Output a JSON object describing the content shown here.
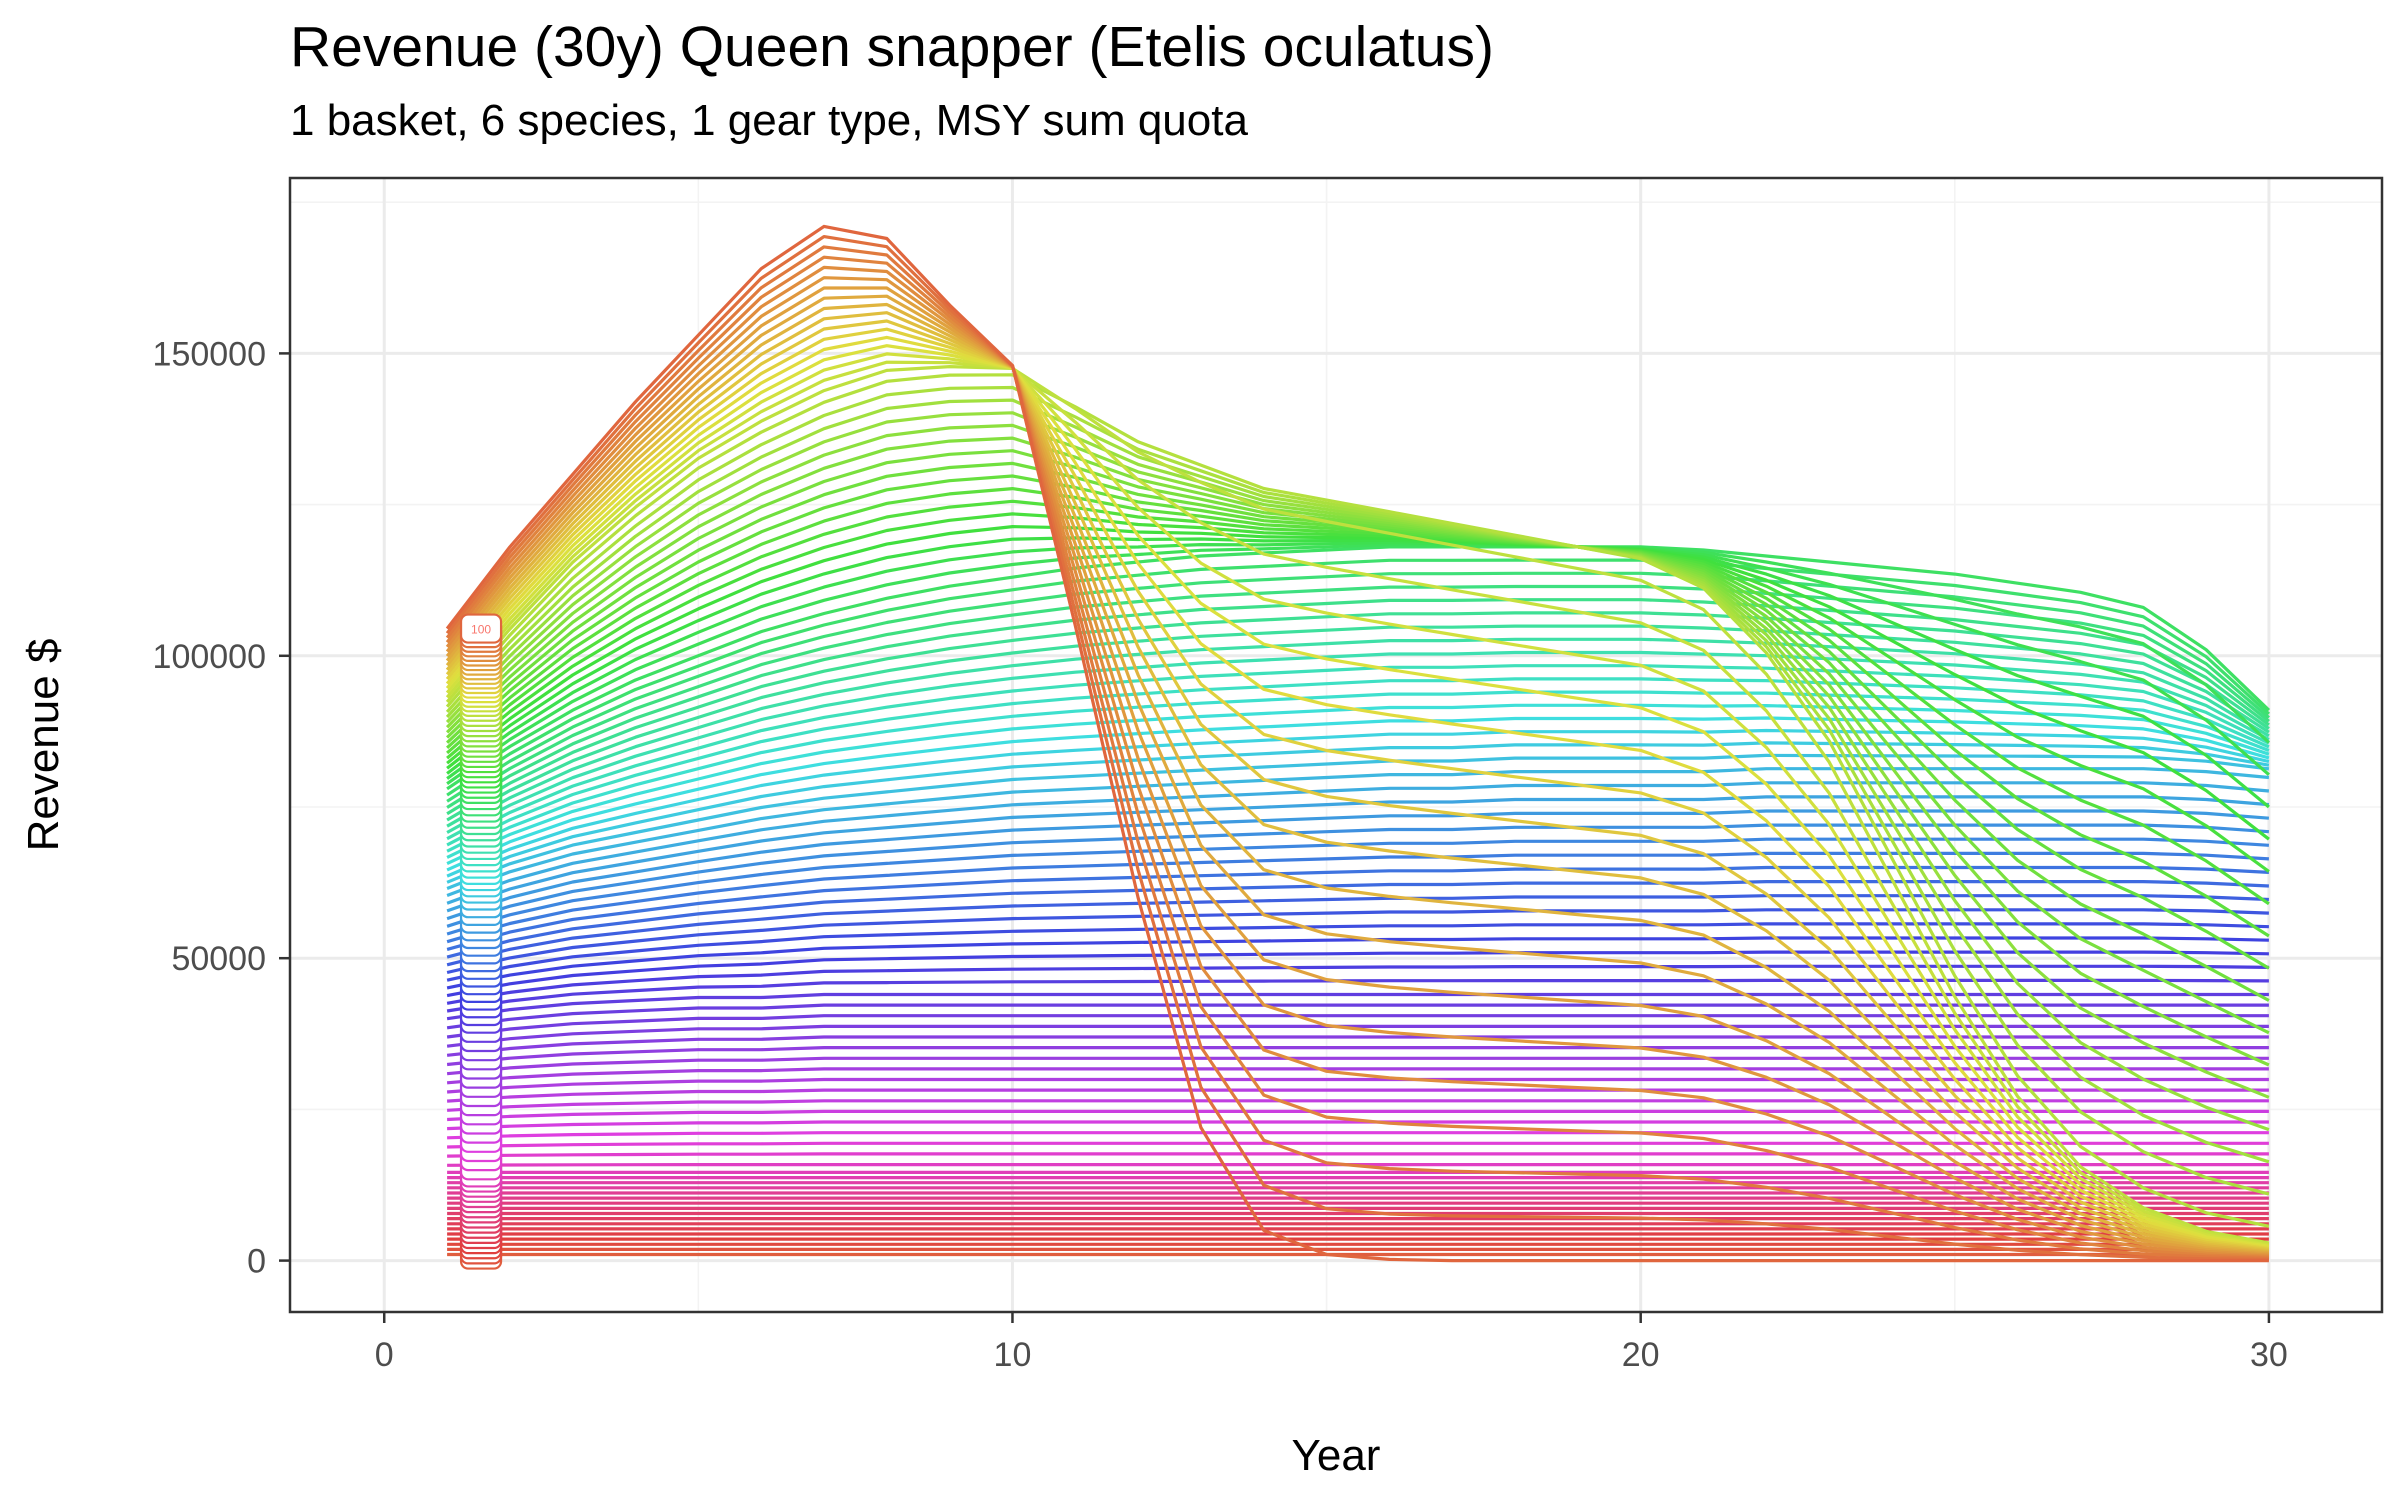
{
  "chart_data": {
    "type": "line",
    "title": "Revenue (30y) Queen snapper (Etelis oculatus)",
    "subtitle": "1 basket, 6 species, 1 gear type, MSY sum quota",
    "xlabel": "Year",
    "ylabel": "Revenue $",
    "xlim": [
      -1.5,
      31.8
    ],
    "ylim": [
      -8500,
      179000
    ],
    "x_ticks": [
      0,
      10,
      20,
      30
    ],
    "y_ticks": [
      0,
      50000,
      100000,
      150000
    ],
    "grid": true,
    "legend": "none",
    "series_count": 100,
    "color_scale": "hue",
    "end_label": "100",
    "x": [
      1,
      2,
      3,
      4,
      5,
      6,
      7,
      8,
      9,
      10,
      11,
      12,
      13,
      14,
      15,
      16,
      17,
      18,
      19,
      20,
      21,
      22,
      23,
      24,
      25,
      26,
      27,
      28,
      29,
      30
    ],
    "series": [
      {
        "values": [
          104500,
          118000,
          130000,
          142000,
          153000,
          164000,
          171000,
          169000,
          158000,
          148000,
          105000,
          60000,
          22000,
          5000,
          1000,
          200,
          0,
          0,
          0,
          0,
          0,
          0,
          0,
          0,
          0,
          0,
          0,
          0,
          0,
          0
        ]
      },
      {
        "values": [
          92000,
          104000,
          115000,
          124000,
          132000,
          138000,
          143000,
          146500,
          147500,
          147500,
          142000,
          136000,
          132000,
          128000,
          126000,
          124000,
          122000,
          120000,
          118000,
          116000,
          111000,
          100000,
          85000,
          65000,
          45000,
          28000,
          16000,
          9000,
          5000,
          3000
        ]
      },
      {
        "values": [
          78000,
          85000,
          91000,
          96000,
          100000,
          104000,
          107000,
          109500,
          111500,
          113000,
          114500,
          115500,
          116500,
          117000,
          117500,
          118000,
          118000,
          118000,
          118000,
          118000,
          117500,
          116500,
          115500,
          114500,
          113500,
          112000,
          110500,
          108000,
          101000,
          91000
        ]
      },
      {
        "values": [
          61000,
          65000,
          68000,
          70000,
          72000,
          74000,
          75500,
          76500,
          77500,
          78500,
          79000,
          79500,
          80000,
          80500,
          81000,
          81500,
          81500,
          82000,
          82000,
          82000,
          82000,
          82500,
          82500,
          82500,
          82500,
          82500,
          82500,
          82500,
          82000,
          81000
        ]
      },
      {
        "values": [
          40000,
          41500,
          42500,
          43000,
          43500,
          43500,
          44000,
          44000,
          44000,
          44000,
          44000,
          44000,
          44000,
          44000,
          44000,
          44000,
          44000,
          44000,
          44000,
          44000,
          44000,
          44000,
          44000,
          44000,
          44000,
          44000,
          44000,
          44000,
          44000,
          44000
        ]
      },
      {
        "values": [
          15000,
          15000,
          15000,
          15000,
          15000,
          15000,
          15000,
          15000,
          15000,
          15000,
          15000,
          15000,
          15000,
          15000,
          15000,
          15000,
          15000,
          15000,
          15000,
          15000,
          15000,
          15000,
          15000,
          15000,
          15000,
          15000,
          15000,
          15000,
          15000,
          15000
        ]
      },
      {
        "values": [
          1000,
          1000,
          1000,
          1000,
          1000,
          1000,
          1000,
          1000,
          1000,
          1000,
          1000,
          1000,
          1000,
          1000,
          1000,
          1000,
          1000,
          1000,
          1000,
          1000,
          1000,
          1000,
          1000,
          1000,
          1000,
          1000,
          1000,
          1000,
          1000,
          1000
        ]
      }
    ]
  }
}
